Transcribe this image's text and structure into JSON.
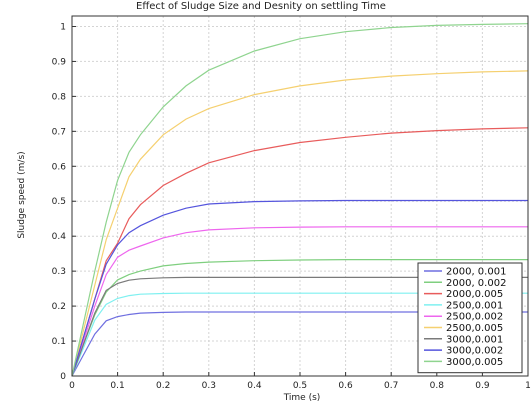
{
  "chart_data": {
    "type": "line",
    "title": "Effect of Sludge Size and Desnity on settling Time",
    "xlabel": "Time (s)",
    "ylabel": "Sludge speed (m/s)",
    "xlim": [
      0,
      1
    ],
    "ylim": [
      0,
      1.03
    ],
    "xticks": [
      0,
      0.1,
      0.2,
      0.3,
      0.4,
      0.5,
      0.6,
      0.7,
      0.8,
      0.9,
      1
    ],
    "yticks": [
      0,
      0.1,
      0.2,
      0.3,
      0.4,
      0.5,
      0.6,
      0.7,
      0.8,
      0.9,
      1
    ],
    "xtick_labels": [
      "0",
      "0.1",
      "0.2",
      "0.3",
      "0.4",
      "0.5",
      "0.6",
      "0.7",
      "0.8",
      "0.9",
      "1"
    ],
    "ytick_labels": [
      "0",
      "0.1",
      "0.2",
      "0.3",
      "0.4",
      "0.5",
      "0.6",
      "0.7",
      "0.8",
      "0.9",
      "1"
    ],
    "grid": true,
    "legend_position": "bottom-right",
    "x": [
      0,
      0.025,
      0.05,
      0.075,
      0.1,
      0.125,
      0.15,
      0.2,
      0.25,
      0.3,
      0.4,
      0.5,
      0.6,
      0.7,
      0.8,
      0.9,
      1.0
    ],
    "series": [
      {
        "name": "2000, 0.001",
        "color": "#6f6fe0",
        "values": [
          0,
          0.06,
          0.12,
          0.158,
          0.17,
          0.176,
          0.18,
          0.182,
          0.183,
          0.183,
          0.183,
          0.183,
          0.183,
          0.183,
          0.183,
          0.183,
          0.183
        ]
      },
      {
        "name": "2000, 0.002",
        "color": "#7fcf7f",
        "values": [
          0,
          0.09,
          0.175,
          0.24,
          0.275,
          0.29,
          0.3,
          0.315,
          0.322,
          0.326,
          0.33,
          0.332,
          0.333,
          0.333,
          0.333,
          0.333,
          0.333
        ]
      },
      {
        "name": "2000,0.005",
        "color": "#e85c5c",
        "values": [
          0,
          0.11,
          0.22,
          0.33,
          0.38,
          0.45,
          0.49,
          0.545,
          0.58,
          0.61,
          0.645,
          0.668,
          0.683,
          0.695,
          0.702,
          0.707,
          0.71
        ]
      },
      {
        "name": "2500,0.001",
        "color": "#7ff0f0",
        "values": [
          0,
          0.08,
          0.16,
          0.205,
          0.222,
          0.23,
          0.234,
          0.236,
          0.237,
          0.237,
          0.237,
          0.237,
          0.237,
          0.237,
          0.237,
          0.237,
          0.237
        ]
      },
      {
        "name": "2500,0.002",
        "color": "#ee66ee",
        "values": [
          0,
          0.1,
          0.2,
          0.29,
          0.34,
          0.36,
          0.372,
          0.395,
          0.41,
          0.418,
          0.424,
          0.426,
          0.427,
          0.427,
          0.427,
          0.427,
          0.427
        ]
      },
      {
        "name": "2500,0.005",
        "color": "#f5d070",
        "values": [
          0,
          0.13,
          0.26,
          0.39,
          0.48,
          0.57,
          0.62,
          0.69,
          0.735,
          0.765,
          0.805,
          0.83,
          0.847,
          0.858,
          0.865,
          0.87,
          0.873
        ]
      },
      {
        "name": "3000,0.001",
        "color": "#7a7a7a",
        "values": [
          0,
          0.09,
          0.18,
          0.245,
          0.265,
          0.274,
          0.278,
          0.281,
          0.282,
          0.282,
          0.282,
          0.282,
          0.282,
          0.282,
          0.282,
          0.282,
          0.282
        ]
      },
      {
        "name": "3000,0.002",
        "color": "#5555dd",
        "values": [
          0,
          0.11,
          0.22,
          0.32,
          0.375,
          0.41,
          0.43,
          0.46,
          0.48,
          0.492,
          0.499,
          0.501,
          0.502,
          0.502,
          0.502,
          0.502,
          0.502
        ]
      },
      {
        "name": "3000,0.005",
        "color": "#8fd48f",
        "values": [
          0,
          0.15,
          0.3,
          0.44,
          0.56,
          0.64,
          0.69,
          0.77,
          0.83,
          0.875,
          0.93,
          0.965,
          0.985,
          0.997,
          1.003,
          1.006,
          1.008
        ]
      }
    ]
  }
}
